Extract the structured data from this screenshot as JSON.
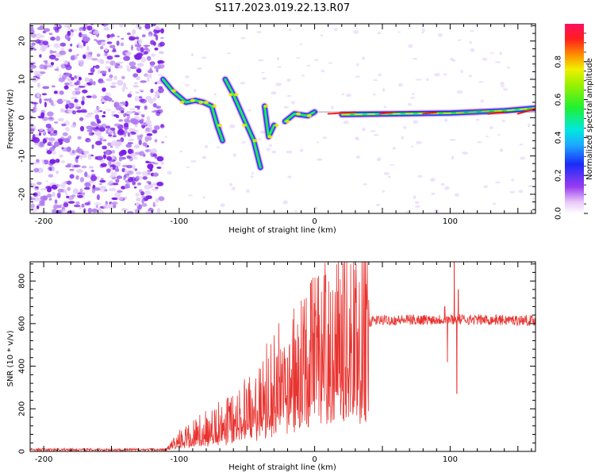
{
  "title": "S117.2023.019.22.13.R07",
  "chart_data": [
    {
      "type": "heatmap",
      "xlabel": "Height of straight line (km)",
      "ylabel": "Frequency (Hz)",
      "xlim": [
        -210,
        163
      ],
      "ylim": [
        -25,
        24.5
      ],
      "xticks": [
        -200,
        -100,
        0,
        100
      ],
      "yticks": [
        -20,
        -10,
        0,
        10,
        20
      ],
      "ridge": [
        {
          "x": -112,
          "y": 10
        },
        {
          "x": -105,
          "y": 7
        },
        {
          "x": -95,
          "y": 4
        },
        {
          "x": -88,
          "y": 4.5
        },
        {
          "x": -82,
          "y": 4
        },
        {
          "x": -76,
          "y": 3
        },
        {
          "x": -72,
          "y": -2
        },
        {
          "x": -68,
          "y": -6
        },
        {
          "x": -66,
          "y": 10
        },
        {
          "x": -60,
          "y": 6
        },
        {
          "x": -55,
          "y": 2
        },
        {
          "x": -50,
          "y": -2
        },
        {
          "x": -45,
          "y": -6
        },
        {
          "x": -40,
          "y": -13
        },
        {
          "x": -38,
          "y": -16
        },
        {
          "x": -37,
          "y": 3
        },
        {
          "x": -34,
          "y": -5
        },
        {
          "x": -30,
          "y": -2
        },
        {
          "x": -22,
          "y": -1
        },
        {
          "x": -15,
          "y": 1
        },
        {
          "x": -5,
          "y": 0.5
        },
        {
          "x": 0,
          "y": 1.5
        },
        {
          "x": 20,
          "y": 0.8
        },
        {
          "x": 60,
          "y": 1
        },
        {
          "x": 100,
          "y": 1.2
        },
        {
          "x": 140,
          "y": 1.8
        },
        {
          "x": 163,
          "y": 2.5
        }
      ]
    },
    {
      "type": "line",
      "xlabel": "Height of straight line (km)",
      "ylabel": "SNR (10 * v/v)",
      "xlim": [
        -210,
        163
      ],
      "ylim": [
        0,
        890
      ],
      "xticks": [
        -200,
        -100,
        0,
        100
      ],
      "yticks": [
        0,
        200,
        400,
        600,
        800
      ],
      "color": "#e8332f",
      "envelope": [
        {
          "x": -210,
          "y": 8
        },
        {
          "x": -110,
          "y": 8
        },
        {
          "x": -100,
          "y": 60
        },
        {
          "x": -80,
          "y": 110
        },
        {
          "x": -60,
          "y": 160
        },
        {
          "x": -45,
          "y": 230
        },
        {
          "x": -30,
          "y": 330
        },
        {
          "x": -15,
          "y": 420
        },
        {
          "x": 0,
          "y": 480
        },
        {
          "x": 15,
          "y": 540
        },
        {
          "x": 30,
          "y": 590
        },
        {
          "x": 45,
          "y": 615
        },
        {
          "x": 100,
          "y": 620
        },
        {
          "x": 163,
          "y": 615
        }
      ],
      "spikes": [
        {
          "x": -3,
          "y": 790
        },
        {
          "x": -20,
          "y": 440
        },
        {
          "x": 96,
          "y": 680
        },
        {
          "x": 98,
          "y": 420
        },
        {
          "x": 103,
          "y": 890
        },
        {
          "x": 105,
          "y": 270
        },
        {
          "x": 106,
          "y": 760
        }
      ]
    }
  ],
  "colorbar": {
    "label": "Normalized spectral amplitude",
    "ticks": [
      "0.0",
      "0.2",
      "0.4",
      "0.6",
      "0.8"
    ]
  }
}
